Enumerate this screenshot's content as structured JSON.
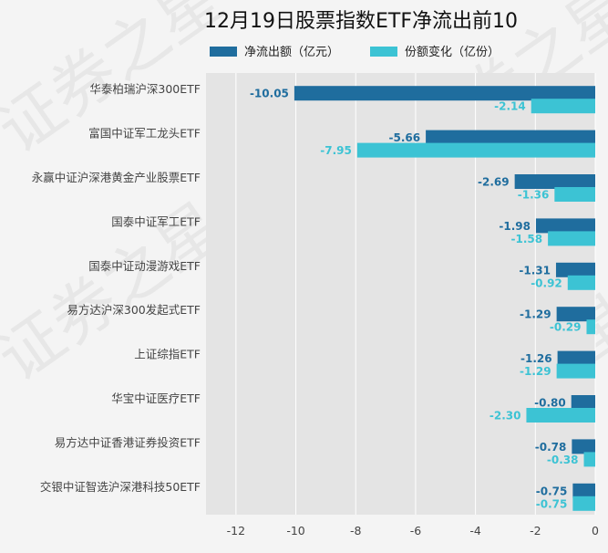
{
  "chart_data": {
    "type": "bar",
    "orientation": "horizontal",
    "title": "12月19日股票指数ETF净流出前10",
    "legend_position": "top",
    "categories": [
      "华泰柏瑞沪深300ETF",
      "富国中证军工龙头ETF",
      "永赢中证沪深港黄金产业股票ETF",
      "国泰中证军工ETF",
      "国泰中证动漫游戏ETF",
      "易方达沪深300发起式ETF",
      "上证综指ETF",
      "华宝中证医疗ETF",
      "易方达中证香港证券投资ETF",
      "交银中证智选沪深港科技50ETF"
    ],
    "series": [
      {
        "name": "净流出额（亿元）",
        "color": "#1f6d9e",
        "values": [
          -10.05,
          -5.66,
          -2.69,
          -1.98,
          -1.31,
          -1.29,
          -1.26,
          -0.8,
          -0.78,
          -0.75
        ],
        "labels": [
          "-10.05",
          "-5.66",
          "-2.69",
          "-1.98",
          "-1.31",
          "-1.29",
          "-1.26",
          "-0.80",
          "-0.78",
          "-0.75"
        ]
      },
      {
        "name": "份额变化（亿份）",
        "color": "#3cc3d4",
        "values": [
          -2.14,
          -7.95,
          -1.36,
          -1.58,
          -0.92,
          -0.29,
          -1.29,
          -2.3,
          -0.38,
          -0.75
        ],
        "labels": [
          "-2.14",
          "-7.95",
          "-1.36",
          "-1.58",
          "-0.92",
          "-0.29",
          "-1.29",
          "-2.30",
          "-0.38",
          "-0.75"
        ]
      }
    ],
    "xlim": [
      -13,
      0
    ],
    "xticks": [
      -12,
      -10,
      -8,
      -6,
      -4,
      -2,
      0
    ],
    "xtick_labels": [
      "-12",
      "-10",
      "-8",
      "-6",
      "-4",
      "-2",
      "0"
    ],
    "grid": true,
    "watermark": "证券之星"
  }
}
